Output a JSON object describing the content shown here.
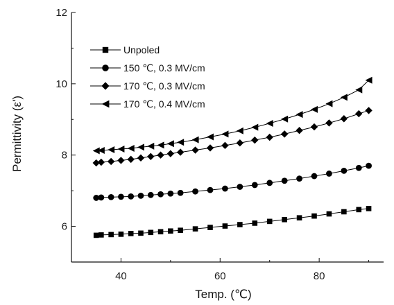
{
  "chart_data": {
    "type": "line",
    "xlabel": "Temp. (℃)",
    "ylabel": "Permittivity (ε')",
    "xlim": [
      30,
      93
    ],
    "ylim": [
      5,
      12
    ],
    "xticks": [
      40,
      60,
      80
    ],
    "yticks": [
      6,
      8,
      10,
      12
    ],
    "x_tick_labels": [
      "40",
      "60",
      "80"
    ],
    "y_tick_labels": [
      "6",
      "8",
      "10",
      "12"
    ],
    "legend_position": "top-left",
    "x": [
      35,
      36,
      38,
      40,
      42,
      44,
      46,
      48,
      50,
      52,
      55,
      58,
      61,
      64,
      67,
      70,
      73,
      76,
      79,
      82,
      85,
      88,
      90
    ],
    "series": [
      {
        "name": "Unpoled",
        "marker": "square",
        "values": [
          5.75,
          5.76,
          5.77,
          5.78,
          5.8,
          5.81,
          5.83,
          5.85,
          5.87,
          5.89,
          5.93,
          5.97,
          6.01,
          6.05,
          6.09,
          6.14,
          6.19,
          6.24,
          6.29,
          6.35,
          6.41,
          6.47,
          6.5
        ]
      },
      {
        "name": "150 ℃, 0.3 MV/cm",
        "marker": "circle",
        "values": [
          6.8,
          6.81,
          6.82,
          6.83,
          6.84,
          6.86,
          6.88,
          6.9,
          6.92,
          6.94,
          6.98,
          7.02,
          7.06,
          7.11,
          7.16,
          7.22,
          7.28,
          7.34,
          7.41,
          7.48,
          7.56,
          7.64,
          7.7
        ]
      },
      {
        "name": "170 ℃, 0.3 MV/cm",
        "marker": "diamond",
        "values": [
          7.78,
          7.8,
          7.82,
          7.85,
          7.88,
          7.92,
          7.96,
          8.0,
          8.04,
          8.08,
          8.14,
          8.2,
          8.27,
          8.34,
          8.42,
          8.5,
          8.59,
          8.69,
          8.79,
          8.9,
          9.02,
          9.16,
          9.25
        ]
      },
      {
        "name": "170 ℃, 0.4 MV/cm",
        "marker": "triangle-left",
        "values": [
          8.12,
          8.13,
          8.15,
          8.17,
          8.19,
          8.22,
          8.25,
          8.28,
          8.32,
          8.36,
          8.43,
          8.51,
          8.59,
          8.68,
          8.78,
          8.89,
          9.01,
          9.14,
          9.28,
          9.44,
          9.62,
          9.83,
          10.1
        ]
      }
    ]
  }
}
